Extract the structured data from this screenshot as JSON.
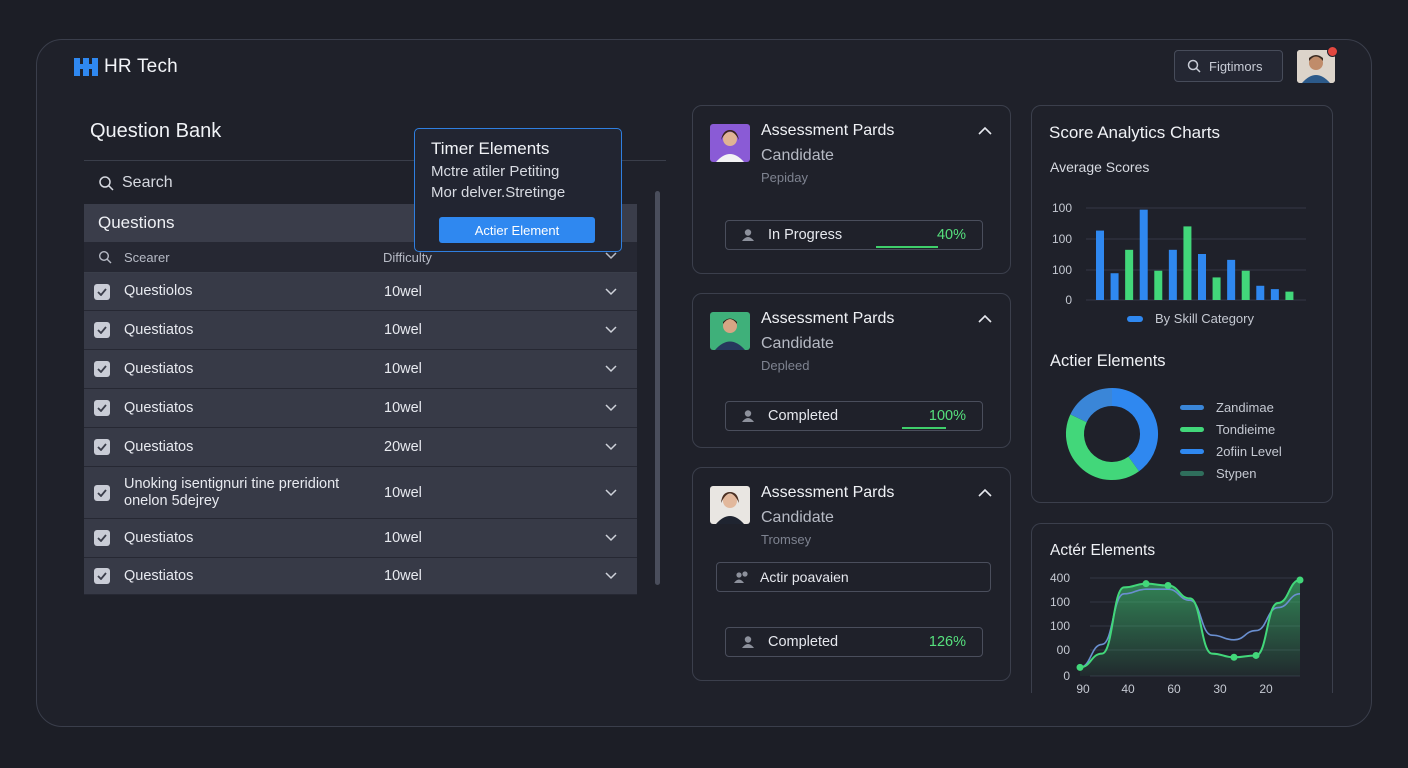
{
  "app": {
    "title": "HR Tech"
  },
  "topbar": {
    "search_label": "Figtimors"
  },
  "question_bank": {
    "title": "Question Bank",
    "search_placeholder": "Search",
    "table_header": "Questions",
    "subheader": {
      "search": "Scearer",
      "difficulty": "Difficulty"
    },
    "rows": [
      {
        "text": "Questiolos",
        "level": "10wel"
      },
      {
        "text": "Questiatos",
        "level": "10wel"
      },
      {
        "text": "Questiatos",
        "level": "10wel"
      },
      {
        "text": "Questiatos",
        "level": "10wel"
      },
      {
        "text": "Questiatos",
        "level": "20wel"
      },
      {
        "text": "Unoking isentignuri tine preridiont onelon 5dejrey",
        "level": "10wel"
      },
      {
        "text": "Questiatos",
        "level": "10wel"
      },
      {
        "text": "Questiatos",
        "level": "10wel"
      }
    ]
  },
  "timer_popover": {
    "title": "Timer Elements",
    "line1": "Mctre atiler Petiting",
    "line2": "Mor delver.Stretinge",
    "button": "Actier Element",
    "accent": "#2f88f0"
  },
  "assessments": [
    {
      "title": "Assessment Pards",
      "subtitle": "Candidate",
      "meta": "Pepiday",
      "status": "In Progress",
      "percent": "40%",
      "progress": 0.4
    },
    {
      "title": "Assessment Pards",
      "subtitle": "Candidate",
      "meta": "Depleed",
      "status": "Completed",
      "percent": "100%",
      "progress": 1.0
    },
    {
      "title": "Assessment Pards",
      "subtitle": "Candidate",
      "meta": "Tromsey",
      "action": "Actir poavaien",
      "status": "Completed",
      "percent": "126%"
    }
  ],
  "analytics": {
    "title": "Score Analytics Charts",
    "subtitle": "Average Scores",
    "legend": "By Skill Category",
    "section": "Actier Elements",
    "donut_legend": [
      {
        "label": "Zandimae",
        "color": "#3a86d8"
      },
      {
        "label": "Tondieime",
        "color": "#42d77a"
      },
      {
        "label": "2ofiin Level",
        "color": "#2f88f0"
      },
      {
        "label": "Stypen",
        "color": "#2f6e5c"
      }
    ]
  },
  "line_card": {
    "title": "Actér Elements"
  },
  "chart_data": [
    {
      "type": "bar",
      "title": "Average Scores",
      "yticks": [
        "100",
        "100",
        "100",
        "0"
      ],
      "legend": "By Skill Category",
      "series": [
        {
          "name": "By Skill Category",
          "color": "#2f88f0",
          "values": [
            83,
            32,
            108,
            60,
            55,
            48,
            17,
            13
          ]
        },
        {
          "color": "#42d77a",
          "values": [
            60,
            35,
            88,
            27,
            35,
            10
          ]
        }
      ]
    },
    {
      "type": "pie",
      "slices": [
        {
          "label": "Zandimae",
          "value": 40,
          "color": "#2f88f0"
        },
        {
          "label": "Tondieime",
          "value": 42,
          "color": "#42d77a"
        },
        {
          "label": "2ofiin Level",
          "value": 18,
          "color": "#3a86d8"
        }
      ]
    },
    {
      "type": "area",
      "yticks": [
        "400",
        "100",
        "100",
        "00",
        "0"
      ],
      "xticks": [
        "90",
        "40",
        "60",
        "30",
        "20"
      ],
      "series": [
        {
          "color": "#42d77a",
          "values": [
            0.05,
            0.2,
            0.92,
            0.96,
            0.94,
            0.8,
            0.2,
            0.16,
            0.18,
            0.75,
            1.0
          ]
        },
        {
          "color": "#6a8fd0",
          "values": [
            0.05,
            0.3,
            0.85,
            0.9,
            0.9,
            0.78,
            0.4,
            0.35,
            0.45,
            0.7,
            0.85
          ]
        }
      ],
      "markers": [
        0,
        3,
        4,
        7,
        8,
        10
      ]
    }
  ]
}
